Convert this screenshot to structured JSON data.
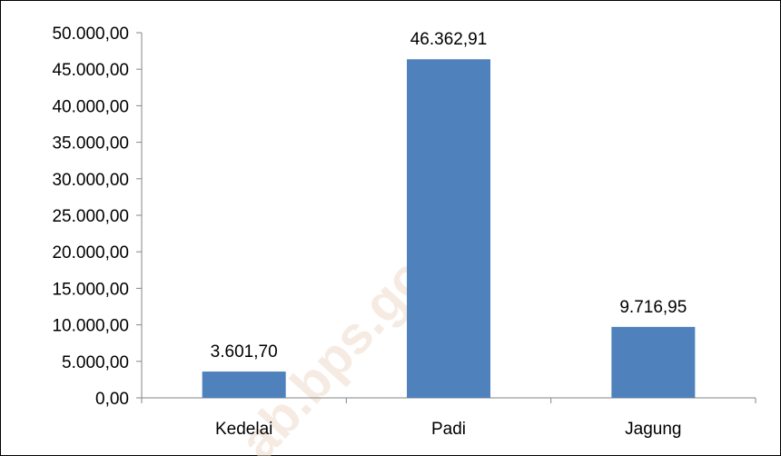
{
  "chart_data": {
    "type": "bar",
    "categories": [
      "Kedelai",
      "Padi",
      "Jagung"
    ],
    "values": [
      3601.7,
      46362.91,
      9716.95
    ],
    "value_labels": [
      "3.601,70",
      "46.362,91",
      "9.716,95"
    ],
    "ylim": [
      0,
      50000
    ],
    "y_ticks": [
      0,
      5000,
      10000,
      15000,
      20000,
      25000,
      30000,
      35000,
      40000,
      45000,
      50000
    ],
    "y_tick_labels": [
      "0,00",
      "5.000,00",
      "10.000,00",
      "15.000,00",
      "20.000,00",
      "25.000,00",
      "30.000,00",
      "35.000,00",
      "40.000,00",
      "45.000,00",
      "50.000,00"
    ],
    "grid": false,
    "legend": "none",
    "bar_color": "#4f81bd",
    "axis_color": "#868686"
  },
  "watermark": "ab.bps.go.id"
}
